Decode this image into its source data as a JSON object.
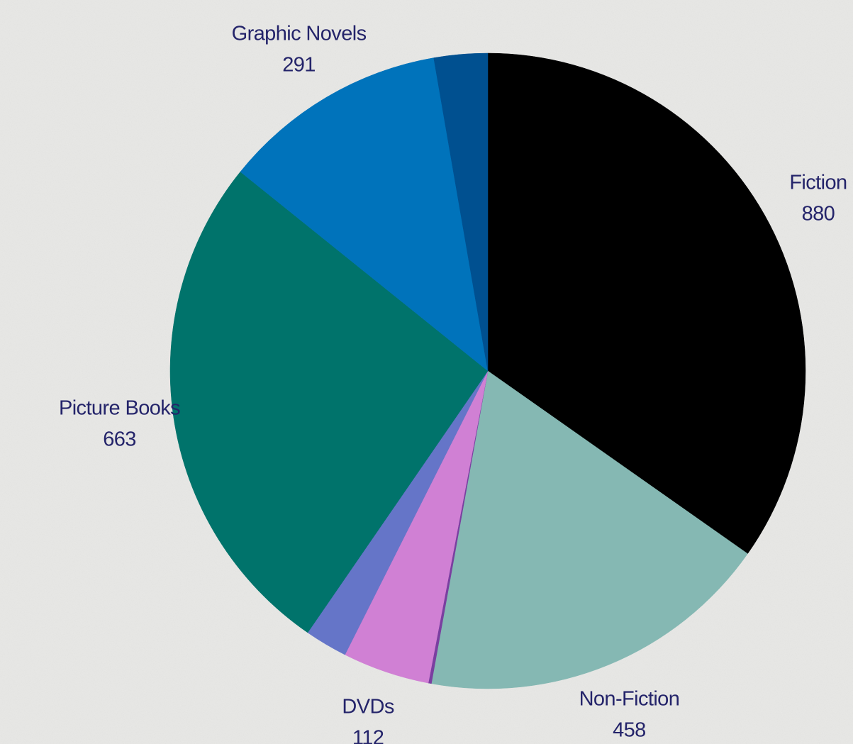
{
  "chart_data": {
    "type": "pie",
    "categories": [
      "Fiction",
      "Non-Fiction",
      null,
      "DVDs",
      null,
      "Picture Books",
      "Graphic Novels",
      null
    ],
    "values": [
      880,
      458,
      4,
      112,
      55,
      663,
      291,
      69
    ],
    "colors": [
      "#000000",
      "#85b8b3",
      "#7a3fa0",
      "#d080d4",
      "#6575c8",
      "#00736b",
      "#0073bb",
      "#005090"
    ]
  }
}
